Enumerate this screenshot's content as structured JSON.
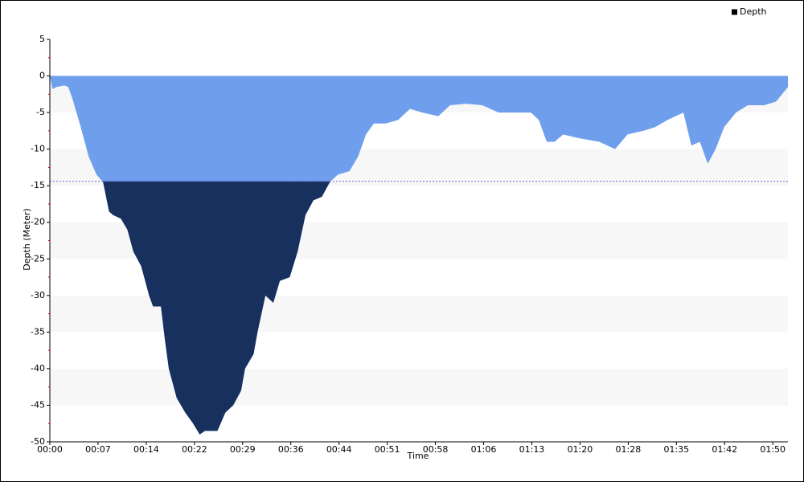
{
  "chart_data": {
    "type": "area",
    "x_label": "Time",
    "y_label": "Depth (Meter)",
    "x": [
      0,
      0.4,
      1.0,
      2.2,
      2.8,
      3.4,
      4.7,
      5.9,
      7.1,
      8.1,
      9.0,
      9.6,
      10.8,
      11.8,
      12.7,
      13.9,
      15.1,
      15.7,
      16.9,
      17.5,
      18.1,
      19.3,
      20.6,
      21.8,
      22.8,
      23.6,
      25.5,
      26.7,
      27.9,
      29.1,
      29.7,
      31.0,
      31.6,
      32.8,
      34.0,
      35.0,
      36.5,
      37.7,
      38.9,
      40.1,
      41.4,
      42.6,
      43.8,
      45.6,
      46.9,
      48.1,
      49.3,
      51.1,
      53.0,
      54.8,
      56.7,
      59.1,
      60.9,
      63.4,
      65.8,
      68.3,
      70.7,
      73.2,
      74.4,
      75.6,
      76.8,
      78.1,
      80.5,
      83.6,
      86.0,
      87.9,
      90.3,
      92.1,
      94.0,
      96.4,
      97.6,
      98.9,
      100.1,
      101.3,
      102.6,
      104.4,
      106.2,
      108.7,
      110.5,
      112.3
    ],
    "series": [
      {
        "name": "Depth",
        "color": "#6f9fec",
        "below_color": "#17305e",
        "values": [
          0,
          -1.8,
          -1.5,
          -1.3,
          -1.5,
          -3,
          -7,
          -11,
          -13.5,
          -14.5,
          -18.5,
          -19,
          -19.5,
          -21,
          -24,
          -26,
          -30,
          -31.5,
          -31.5,
          -36,
          -40,
          -44,
          -46,
          -47.5,
          -49,
          -48.5,
          -48.5,
          -46,
          -45,
          -43,
          -40,
          -38,
          -35,
          -30,
          -31,
          -28,
          -27.5,
          -24,
          -19,
          -17,
          -16.5,
          -14.5,
          -13.5,
          -13,
          -11,
          -8,
          -6.5,
          -6.5,
          -6,
          -4.5,
          -5,
          -5.5,
          -4,
          -3.8,
          -4,
          -5,
          -5,
          -5,
          -6,
          -9,
          -9,
          -8,
          -8.5,
          -9,
          -10,
          -8,
          -7.5,
          -7,
          -6,
          -5,
          -9.5,
          -9,
          -12,
          -10,
          -7,
          -5,
          -4,
          -4,
          -3.5,
          -1.5
        ]
      }
    ],
    "threshold": -14.4,
    "xlim": [
      0,
      112.3
    ],
    "xticks": [
      {
        "value": 0,
        "label": "00:00"
      },
      {
        "value": 7.333,
        "label": "00:07"
      },
      {
        "value": 14.667,
        "label": "00:14"
      },
      {
        "value": 22,
        "label": "00:22"
      },
      {
        "value": 29.333,
        "label": "00:29"
      },
      {
        "value": 36.667,
        "label": "00:36"
      },
      {
        "value": 44,
        "label": "00:44"
      },
      {
        "value": 51.333,
        "label": "00:51"
      },
      {
        "value": 58.667,
        "label": "00:58"
      },
      {
        "value": 66,
        "label": "01:06"
      },
      {
        "value": 73.333,
        "label": "01:13"
      },
      {
        "value": 80.667,
        "label": "01:20"
      },
      {
        "value": 88,
        "label": "01:28"
      },
      {
        "value": 95.333,
        "label": "01:35"
      },
      {
        "value": 102.667,
        "label": "01:42"
      },
      {
        "value": 110,
        "label": "01:50"
      }
    ],
    "ylim": [
      -50,
      5
    ],
    "yticks": [
      5,
      0,
      -5,
      -10,
      -15,
      -20,
      -25,
      -30,
      -35,
      -40,
      -45,
      -50
    ],
    "grid": "bands",
    "legend": "top-right"
  }
}
